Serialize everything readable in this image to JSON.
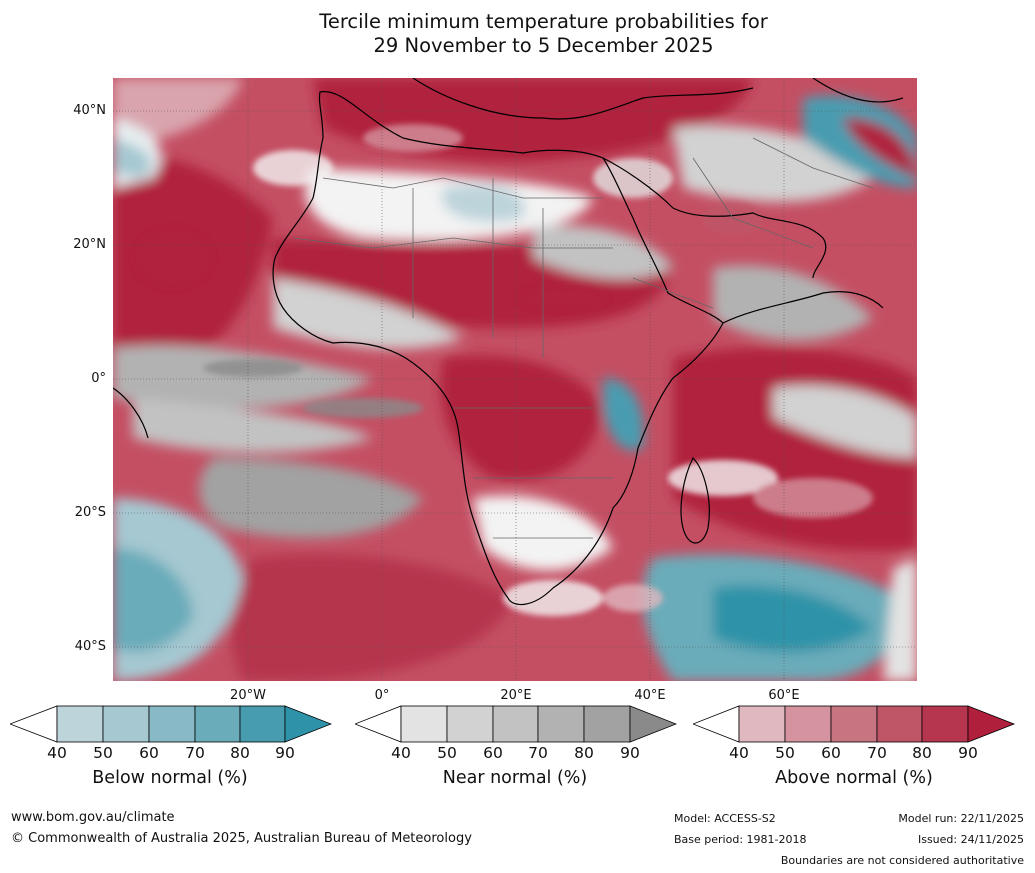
{
  "title": {
    "line1": "Tercile minimum temperature probabilities for",
    "line2": "29 November to 5 December 2025"
  },
  "axes": {
    "lat_ticks": [
      "40°N",
      "20°N",
      "0°",
      "20°S",
      "40°S"
    ],
    "lon_ticks": [
      "20°W",
      "0°",
      "20°E",
      "40°E",
      "60°E"
    ]
  },
  "colorbars": [
    {
      "label": "Below normal (%)",
      "ticks": [
        "40",
        "50",
        "60",
        "70",
        "80",
        "90"
      ],
      "colors": [
        "#ffffff",
        "#bdd4db",
        "#a5c8d1",
        "#88b9c6",
        "#6aacba",
        "#489cb0",
        "#2e93a8"
      ]
    },
    {
      "label": "Near normal (%)",
      "ticks": [
        "40",
        "50",
        "60",
        "70",
        "80",
        "90"
      ],
      "colors": [
        "#ffffff",
        "#e3e3e3",
        "#d2d2d2",
        "#c2c2c2",
        "#b2b2b2",
        "#a2a2a2",
        "#8a8a8a"
      ]
    },
    {
      "label": "Above normal (%)",
      "ticks": [
        "40",
        "50",
        "60",
        "70",
        "80",
        "90"
      ],
      "colors": [
        "#ffffff",
        "#e0b8bf",
        "#d4939e",
        "#c87582",
        "#bf5668",
        "#b5364e",
        "#b0203d"
      ]
    }
  ],
  "footer": {
    "website": "www.bom.gov.au/climate",
    "copyright": "© Commonwealth of Australia 2025, Australian Bureau of Meteorology",
    "model": "Model: ACCESS-S2",
    "base_period": "Base period: 1981-2018",
    "model_run": "Model run: 22/11/2025",
    "issued": "Issued: 24/11/2025",
    "disclaimer": "Boundaries are not considered authoritative"
  }
}
